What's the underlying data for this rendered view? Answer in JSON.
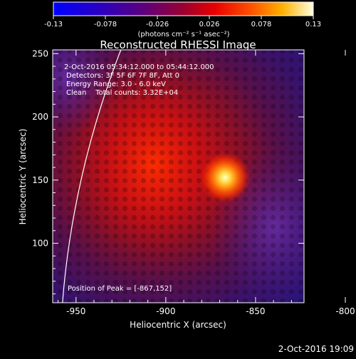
{
  "colorbar": {
    "ticks": [
      "-0.13",
      "-0.078",
      "-0.026",
      "0.026",
      "0.078",
      "0.13"
    ],
    "tick_values": [
      -0.13,
      -0.078,
      -0.026,
      0.026,
      0.078,
      0.13
    ],
    "range": [
      -0.13,
      0.13
    ],
    "unit_label": "(photons cm⁻² s⁻¹ asec⁻²)"
  },
  "chart_data": {
    "type": "heatmap",
    "title": "Reconstructed RHESSI Image",
    "xlabel": "Heliocentric X (arcsec)",
    "ylabel": "Heliocentric Y (arcsec)",
    "xlim": [
      -963,
      -823
    ],
    "ylim": [
      53,
      253
    ],
    "xticks": [
      -950,
      -900,
      -850,
      -800
    ],
    "yticks": [
      100,
      150,
      200,
      250
    ],
    "peak": {
      "x": -867,
      "y": 152,
      "value": 0.13
    },
    "info_lines": [
      "2-Oct-2016 05:34:12.000 to 05:44:12.000",
      "Detectors: 3F 5F 6F 7F 8F, Att 0",
      "Energy Range: 3.0 - 6.0 keV",
      "Clean    Total counts: 3.32E+04"
    ],
    "peak_label": "Position of Peak = [-867,152]",
    "limb": true
  },
  "footer": {
    "timestamp": "2-Oct-2016 19:09"
  }
}
